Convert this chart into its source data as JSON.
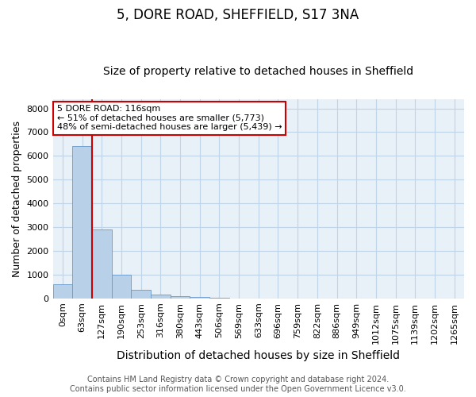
{
  "title1": "5, DORE ROAD, SHEFFIELD, S17 3NA",
  "title2": "Size of property relative to detached houses in Sheffield",
  "xlabel": "Distribution of detached houses by size in Sheffield",
  "ylabel": "Number of detached properties",
  "categories": [
    "0sqm",
    "63sqm",
    "127sqm",
    "190sqm",
    "253sqm",
    "316sqm",
    "380sqm",
    "443sqm",
    "506sqm",
    "569sqm",
    "633sqm",
    "696sqm",
    "759sqm",
    "822sqm",
    "886sqm",
    "949sqm",
    "1012sqm",
    "1075sqm",
    "1139sqm",
    "1202sqm",
    "1265sqm"
  ],
  "bar_heights": [
    580,
    6400,
    2900,
    990,
    370,
    160,
    100,
    60,
    20,
    5,
    3,
    2,
    1,
    1,
    0,
    0,
    0,
    0,
    0,
    0,
    0
  ],
  "bar_color": "#b8d0e8",
  "bar_edgecolor": "#6699cc",
  "vline_index": 2,
  "vline_color": "#cc0000",
  "ylim": [
    0,
    8400
  ],
  "yticks": [
    0,
    1000,
    2000,
    3000,
    4000,
    5000,
    6000,
    7000,
    8000
  ],
  "annotation_text": "5 DORE ROAD: 116sqm\n← 51% of detached houses are smaller (5,773)\n48% of semi-detached houses are larger (5,439) →",
  "annotation_box_color": "#cc0000",
  "footer1": "Contains HM Land Registry data © Crown copyright and database right 2024.",
  "footer2": "Contains public sector information licensed under the Open Government Licence v3.0.",
  "background_color": "#ffffff",
  "grid_color": "#c0d4e8",
  "plot_bg_color": "#e8f0f8",
  "title1_fontsize": 12,
  "title2_fontsize": 10,
  "annot_fontsize": 8,
  "xlabel_fontsize": 10,
  "ylabel_fontsize": 9,
  "footer_fontsize": 7,
  "tick_fontsize": 8
}
